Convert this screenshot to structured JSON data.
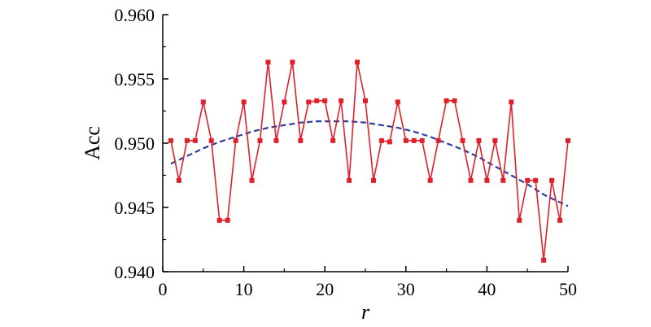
{
  "chart_data": {
    "type": "line",
    "xlabel": "r",
    "ylabel": "Acc",
    "xlim": [
      0,
      50
    ],
    "ylim": [
      0.94,
      0.96
    ],
    "x_ticks": [
      "0",
      "10",
      "20",
      "30",
      "40",
      "50"
    ],
    "y_ticks": [
      "0.940",
      "0.945",
      "0.950",
      "0.955",
      "0.960"
    ],
    "grid": false,
    "legend": "none",
    "series": [
      {
        "color": "#e0202a",
        "marker": "square",
        "style": "solid",
        "x": [
          1,
          2,
          3,
          4,
          5,
          6,
          7,
          8,
          9,
          10,
          11,
          12,
          13,
          14,
          15,
          16,
          17,
          18,
          19,
          20,
          21,
          22,
          23,
          24,
          25,
          26,
          27,
          28,
          29,
          30,
          31,
          32,
          33,
          34,
          35,
          36,
          37,
          38,
          39,
          40,
          41,
          42,
          43,
          44,
          45,
          46,
          47,
          48,
          49,
          50
        ],
        "values": [
          0.9502,
          0.9471,
          0.9502,
          0.9502,
          0.9532,
          0.9502,
          0.944,
          0.944,
          0.9502,
          0.9532,
          0.9471,
          0.9502,
          0.9563,
          0.9502,
          0.9532,
          0.9563,
          0.9502,
          0.9532,
          0.9533,
          0.9533,
          0.9502,
          0.9533,
          0.9471,
          0.9563,
          0.9533,
          0.9471,
          0.9502,
          0.9501,
          0.9532,
          0.9502,
          0.9502,
          0.9502,
          0.9471,
          0.9502,
          0.9533,
          0.9533,
          0.9502,
          0.9471,
          0.9502,
          0.9471,
          0.9502,
          0.9471,
          0.9532,
          0.944,
          0.9471,
          0.9471,
          0.9409,
          0.9471,
          0.944,
          0.9502
        ]
      },
      {
        "color": "#2a3f9e",
        "style": "dashed",
        "x": [
          1,
          3,
          5,
          7,
          9,
          11,
          13,
          15,
          17,
          19,
          21,
          23,
          25,
          27,
          29,
          31,
          33,
          35,
          37,
          39,
          41,
          43,
          45,
          47,
          49,
          50
        ],
        "values": [
          0.9484,
          0.949,
          0.9496,
          0.9501,
          0.9505,
          0.9509,
          0.9512,
          0.9514,
          0.9516,
          0.9517,
          0.9517,
          0.9517,
          0.9516,
          0.9514,
          0.9512,
          0.9509,
          0.9505,
          0.95,
          0.9495,
          0.9489,
          0.9482,
          0.9475,
          0.9468,
          0.946,
          0.9454,
          0.9451
        ]
      }
    ]
  }
}
